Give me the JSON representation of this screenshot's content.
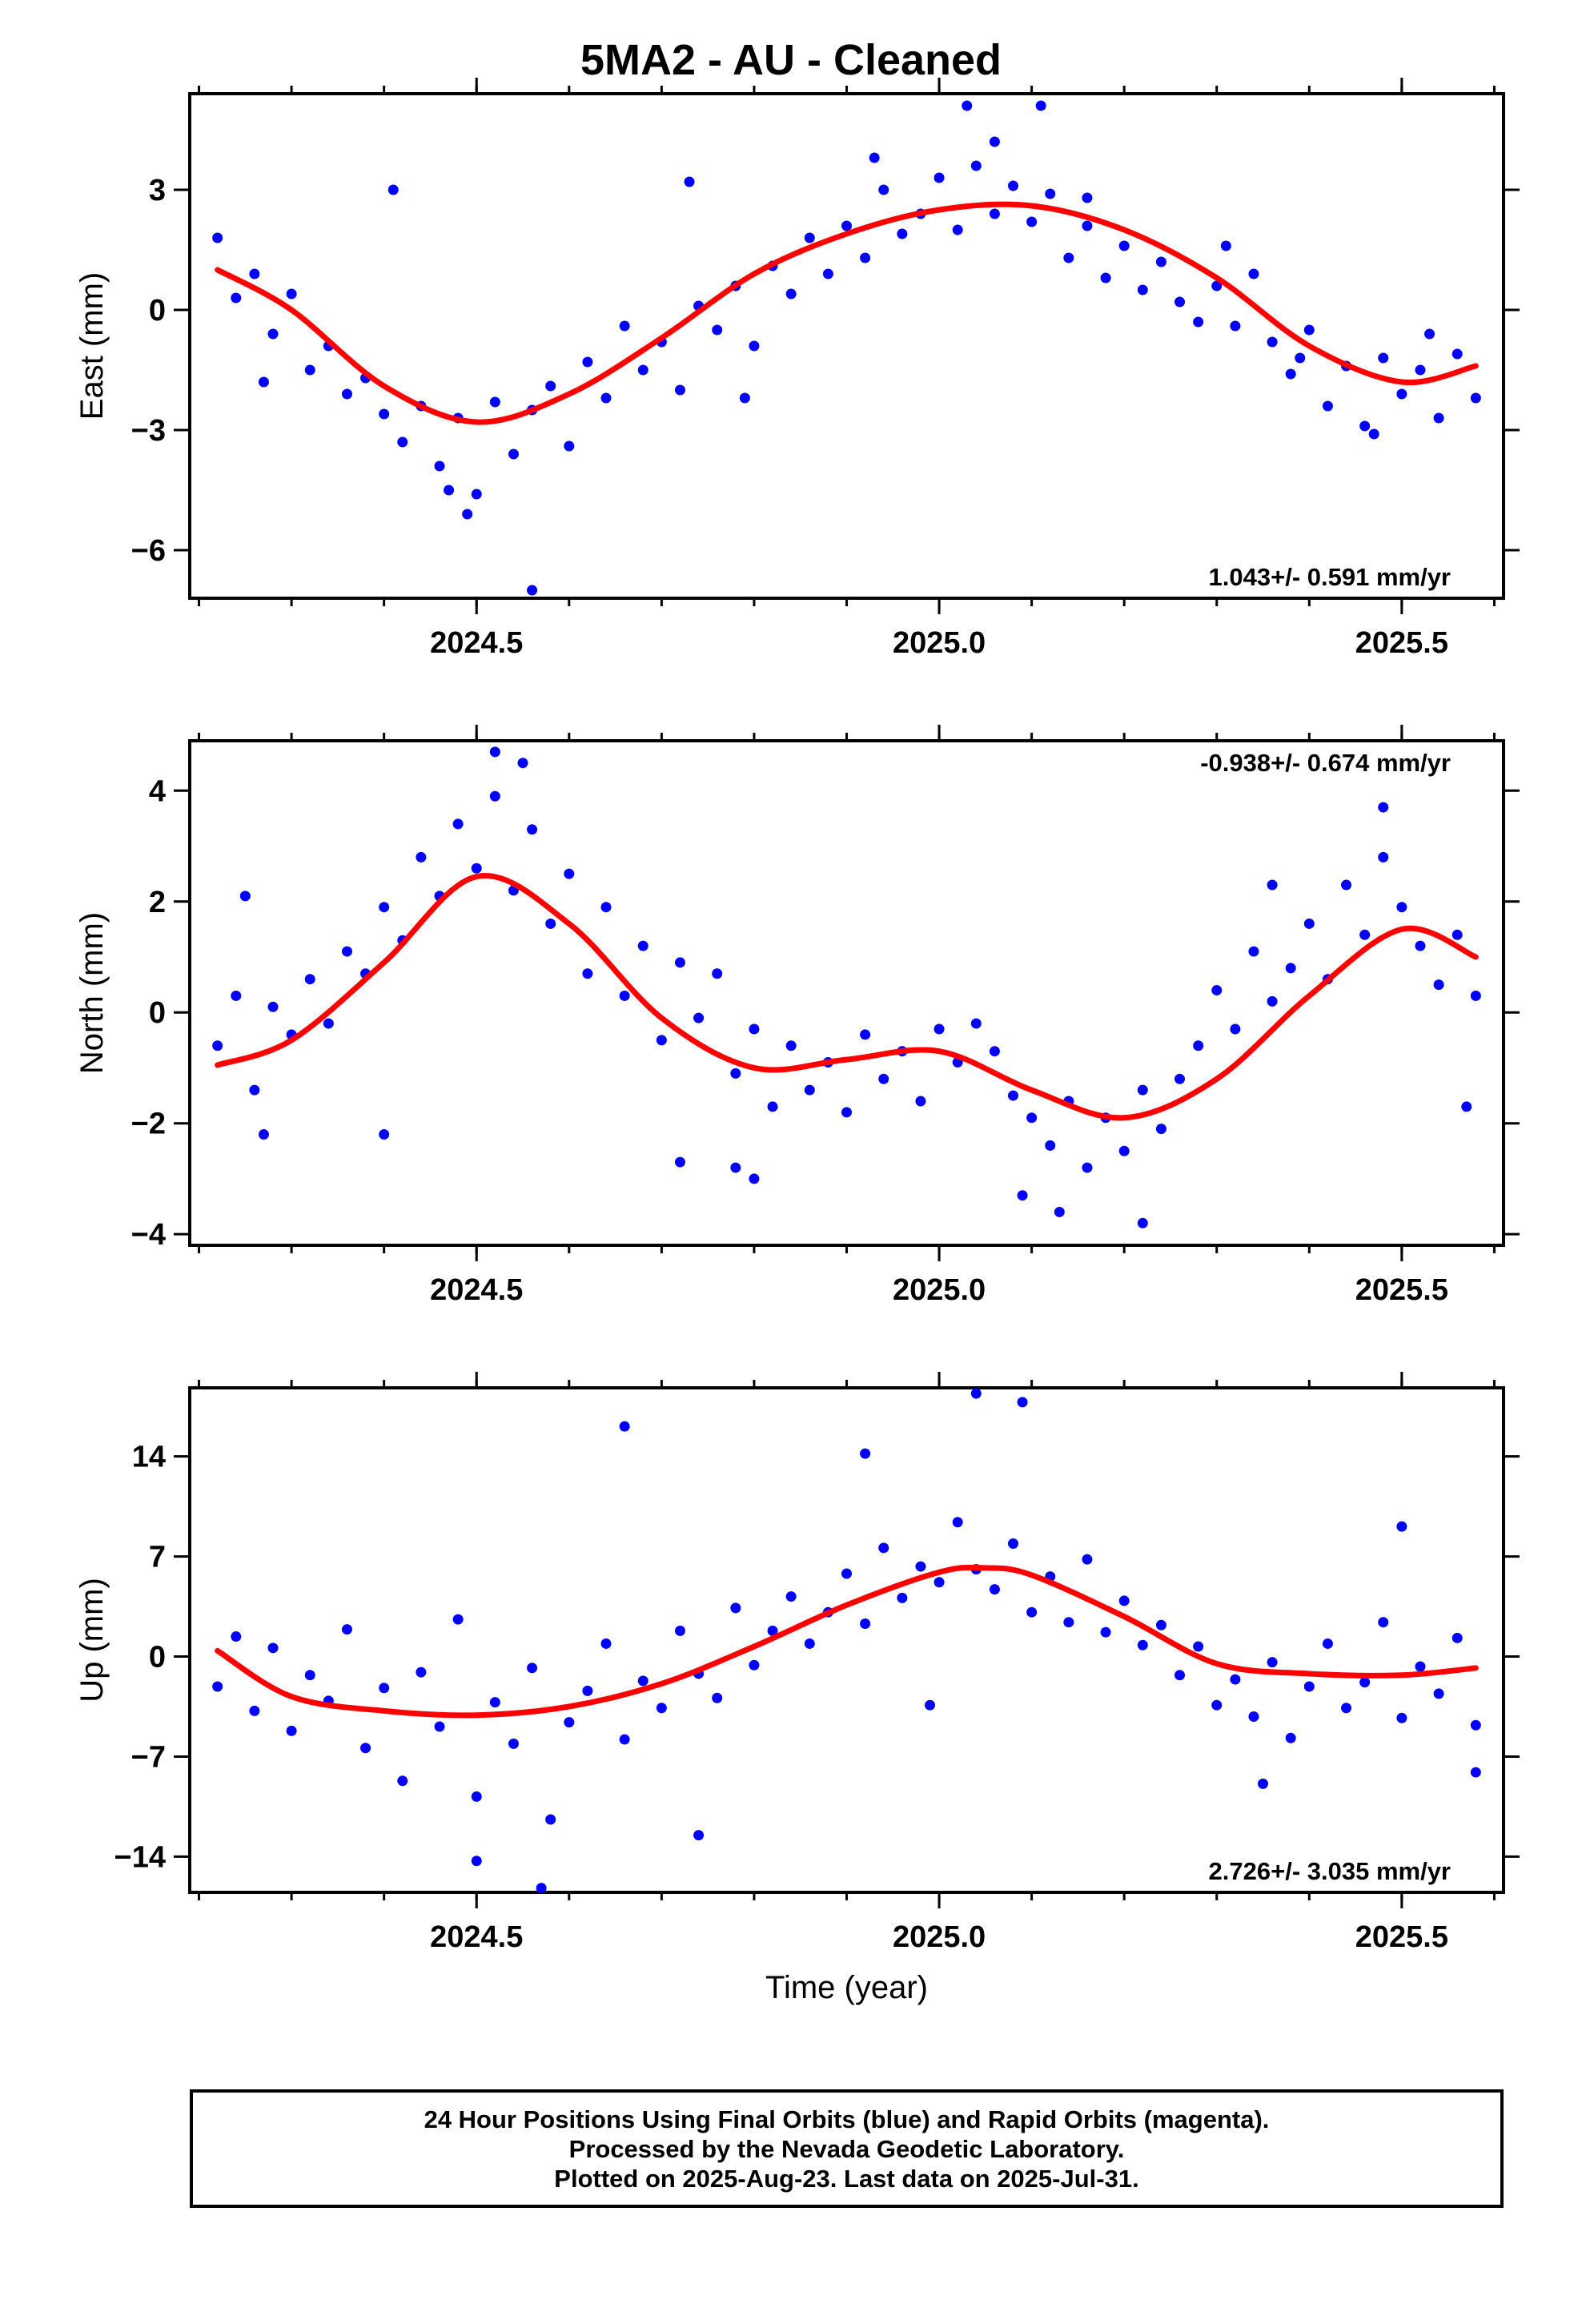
{
  "title": "5MA2  - AU - Cleaned",
  "colors": {
    "points": "#0000ff",
    "fit": "#ff0000",
    "frame": "#000000"
  },
  "footer": {
    "line1": "24 Hour Positions Using Final Orbits (blue) and Rapid Orbits (magenta).",
    "line2": "Processed by the Nevada Geodetic Laboratory.",
    "line3": "Plotted on 2025-Aug-23. Last data on 2025-Jul-31."
  },
  "chart_data": [
    {
      "type": "scatter",
      "ylabel": "East (mm)",
      "xlabel": "",
      "rate_label": "1.043+/- 0.591 mm/yr",
      "rate_position": "bottom-right",
      "xlim": [
        2024.19,
        2025.61
      ],
      "ylim": [
        -7.2,
        5.4
      ],
      "xticks": [
        2024.5,
        2025.0,
        2025.5
      ],
      "xtick_labels": [
        "2024.5",
        "2025.0",
        "2025.5"
      ],
      "yticks": [
        -6,
        -3,
        0,
        3
      ],
      "ytick_labels": [
        "−6",
        "−3",
        "0",
        "3"
      ],
      "series": [
        {
          "role": "points",
          "color": "#0000ff",
          "x": [
            2024.22,
            2024.24,
            2024.26,
            2024.28,
            2024.3,
            2024.32,
            2024.34,
            2024.36,
            2024.38,
            2024.4,
            2024.42,
            2024.44,
            2024.46,
            2024.48,
            2024.5,
            2024.52,
            2024.54,
            2024.56,
            2024.58,
            2024.6,
            2024.62,
            2024.64,
            2024.66,
            2024.68,
            2024.7,
            2024.72,
            2024.74,
            2024.76,
            2024.78,
            2024.8,
            2024.82,
            2024.84,
            2024.86,
            2024.88,
            2024.9,
            2024.92,
            2024.94,
            2024.96,
            2024.98,
            2025.0,
            2025.02,
            2025.04,
            2025.06,
            2025.08,
            2025.1,
            2025.12,
            2025.14,
            2025.16,
            2025.18,
            2025.2,
            2025.22,
            2025.24,
            2025.26,
            2025.28,
            2025.3,
            2025.32,
            2025.34,
            2025.36,
            2025.38,
            2025.4,
            2025.42,
            2025.44,
            2025.46,
            2025.48,
            2025.5,
            2025.52,
            2025.54,
            2025.56,
            2025.58,
            2024.27,
            2024.41,
            2024.47,
            2024.49,
            2024.56,
            2024.73,
            2024.79,
            2024.93,
            2025.03,
            2025.06,
            2025.11,
            2025.16,
            2025.31,
            2025.39,
            2025.47,
            2025.53
          ],
          "y": [
            1.8,
            0.3,
            0.9,
            -0.6,
            0.4,
            -1.5,
            -0.9,
            -2.1,
            -1.7,
            -2.6,
            -3.3,
            -2.4,
            -3.9,
            -2.7,
            -4.6,
            -2.3,
            -3.6,
            -2.5,
            -1.9,
            -3.4,
            -1.3,
            -2.2,
            -0.4,
            -1.5,
            -0.8,
            -2.0,
            0.1,
            -0.5,
            0.6,
            -0.9,
            1.1,
            0.4,
            1.8,
            0.9,
            2.1,
            1.3,
            3.0,
            1.9,
            2.4,
            3.3,
            2.0,
            3.6,
            2.4,
            3.1,
            2.2,
            2.9,
            1.3,
            2.1,
            0.8,
            1.6,
            0.5,
            1.2,
            0.2,
            -0.3,
            0.6,
            -0.4,
            0.9,
            -0.8,
            -1.6,
            -0.5,
            -2.4,
            -1.4,
            -2.9,
            -1.2,
            -2.1,
            -1.5,
            -2.7,
            -1.1,
            -2.2,
            -1.8,
            3.0,
            -4.5,
            -5.1,
            -7.0,
            3.2,
            -2.2,
            3.8,
            5.1,
            4.2,
            5.1,
            2.8,
            1.6,
            -1.2,
            -3.1,
            -0.6
          ]
        },
        {
          "role": "fit",
          "color": "#ff0000",
          "x": [
            2024.22,
            2024.3,
            2024.4,
            2024.5,
            2024.6,
            2024.7,
            2024.8,
            2024.9,
            2025.0,
            2025.1,
            2025.2,
            2025.3,
            2025.4,
            2025.5,
            2025.58
          ],
          "y": [
            1.0,
            0.0,
            -1.9,
            -2.8,
            -2.1,
            -0.7,
            0.9,
            1.9,
            2.5,
            2.6,
            2.0,
            0.8,
            -0.9,
            -1.8,
            -1.4
          ]
        }
      ]
    },
    {
      "type": "scatter",
      "ylabel": "North (mm)",
      "xlabel": "",
      "rate_label": "-0.938+/- 0.674 mm/yr",
      "rate_position": "top-right",
      "xlim": [
        2024.19,
        2025.61
      ],
      "ylim": [
        -4.2,
        4.9
      ],
      "xticks": [
        2024.5,
        2025.0,
        2025.5
      ],
      "xtick_labels": [
        "2024.5",
        "2025.0",
        "2025.5"
      ],
      "yticks": [
        -4,
        -2,
        0,
        2,
        4
      ],
      "ytick_labels": [
        "−4",
        "−2",
        "0",
        "2",
        "4"
      ],
      "series": [
        {
          "role": "points",
          "color": "#0000ff",
          "x": [
            2024.22,
            2024.24,
            2024.26,
            2024.28,
            2024.3,
            2024.32,
            2024.34,
            2024.36,
            2024.38,
            2024.4,
            2024.42,
            2024.44,
            2024.46,
            2024.48,
            2024.5,
            2024.52,
            2024.54,
            2024.56,
            2024.58,
            2024.6,
            2024.62,
            2024.64,
            2024.66,
            2024.68,
            2024.7,
            2024.72,
            2024.74,
            2024.76,
            2024.78,
            2024.8,
            2024.82,
            2024.84,
            2024.86,
            2024.88,
            2024.9,
            2024.92,
            2024.94,
            2024.96,
            2024.98,
            2025.0,
            2025.02,
            2025.04,
            2025.06,
            2025.08,
            2025.1,
            2025.12,
            2025.14,
            2025.16,
            2025.18,
            2025.2,
            2025.22,
            2025.24,
            2025.26,
            2025.28,
            2025.3,
            2025.32,
            2025.34,
            2025.36,
            2025.38,
            2025.4,
            2025.42,
            2025.44,
            2025.46,
            2025.48,
            2025.5,
            2025.52,
            2025.54,
            2025.56,
            2025.58,
            2024.25,
            2024.27,
            2024.4,
            2024.52,
            2024.55,
            2024.72,
            2024.78,
            2024.8,
            2025.09,
            2025.13,
            2025.22,
            2025.36,
            2025.48,
            2025.57
          ],
          "y": [
            -0.6,
            0.3,
            -1.4,
            0.1,
            -0.4,
            0.6,
            -0.2,
            1.1,
            0.7,
            1.9,
            1.3,
            2.8,
            2.1,
            3.4,
            2.6,
            3.9,
            2.2,
            3.3,
            1.6,
            2.5,
            0.7,
            1.9,
            0.3,
            1.2,
            -0.5,
            0.9,
            -0.1,
            0.7,
            -1.1,
            -0.3,
            -1.7,
            -0.6,
            -1.4,
            -0.9,
            -1.8,
            -0.4,
            -1.2,
            -0.7,
            -1.6,
            -0.3,
            -0.9,
            -0.2,
            -0.7,
            -1.5,
            -1.9,
            -2.4,
            -1.6,
            -2.8,
            -1.9,
            -2.5,
            -1.4,
            -2.1,
            -1.2,
            -0.6,
            0.4,
            -0.3,
            1.1,
            0.2,
            0.8,
            1.6,
            0.6,
            2.3,
            1.4,
            2.8,
            1.9,
            1.2,
            0.5,
            1.4,
            0.3,
            2.1,
            -2.2,
            -2.2,
            4.7,
            4.5,
            -2.7,
            -2.8,
            -3.0,
            -3.3,
            -3.6,
            -3.8,
            2.3,
            3.7,
            -1.7
          ]
        },
        {
          "role": "fit",
          "color": "#ff0000",
          "x": [
            2024.22,
            2024.3,
            2024.4,
            2024.5,
            2024.6,
            2024.7,
            2024.8,
            2024.9,
            2025.0,
            2025.1,
            2025.2,
            2025.3,
            2025.4,
            2025.5,
            2025.58
          ],
          "y": [
            -0.95,
            -0.5,
            0.9,
            2.45,
            1.6,
            -0.1,
            -1.0,
            -0.85,
            -0.7,
            -1.4,
            -1.9,
            -1.2,
            0.3,
            1.5,
            1.0
          ]
        }
      ]
    },
    {
      "type": "scatter",
      "ylabel": "Up (mm)",
      "xlabel": "Time (year)",
      "rate_label": "2.726+/- 3.035 mm/yr",
      "rate_position": "bottom-right",
      "xlim": [
        2024.19,
        2025.61
      ],
      "ylim": [
        -16.5,
        18.8
      ],
      "xticks": [
        2024.5,
        2025.0,
        2025.5
      ],
      "xtick_labels": [
        "2024.5",
        "2025.0",
        "2025.5"
      ],
      "yticks": [
        -14,
        -7,
        0,
        7,
        14
      ],
      "ytick_labels": [
        "−14",
        "−7",
        "0",
        "7",
        "14"
      ],
      "series": [
        {
          "role": "points",
          "color": "#0000ff",
          "x": [
            2024.22,
            2024.24,
            2024.26,
            2024.28,
            2024.3,
            2024.32,
            2024.34,
            2024.36,
            2024.38,
            2024.4,
            2024.42,
            2024.44,
            2024.46,
            2024.48,
            2024.5,
            2024.52,
            2024.54,
            2024.56,
            2024.58,
            2024.6,
            2024.62,
            2024.64,
            2024.66,
            2024.68,
            2024.7,
            2024.72,
            2024.74,
            2024.76,
            2024.78,
            2024.8,
            2024.82,
            2024.84,
            2024.86,
            2024.88,
            2024.9,
            2024.92,
            2024.94,
            2024.96,
            2024.98,
            2025.0,
            2025.02,
            2025.04,
            2025.06,
            2025.08,
            2025.1,
            2025.12,
            2025.14,
            2025.16,
            2025.18,
            2025.2,
            2025.22,
            2025.24,
            2025.26,
            2025.28,
            2025.3,
            2025.32,
            2025.34,
            2025.36,
            2025.38,
            2025.4,
            2025.42,
            2025.44,
            2025.46,
            2025.48,
            2025.5,
            2025.52,
            2025.54,
            2025.56,
            2025.58,
            2024.5,
            2024.57,
            2024.66,
            2024.74,
            2024.92,
            2024.99,
            2025.04,
            2025.09,
            2025.35,
            2025.5,
            2025.58
          ],
          "y": [
            -2.1,
            1.4,
            -3.8,
            0.6,
            -5.2,
            -1.3,
            -3.1,
            1.9,
            -6.4,
            -2.2,
            -8.7,
            -1.1,
            -4.9,
            2.6,
            -9.8,
            -3.2,
            -6.1,
            -0.8,
            -11.4,
            -4.6,
            -2.4,
            0.9,
            -5.8,
            -1.7,
            -3.6,
            1.8,
            -1.2,
            -2.9,
            3.4,
            -0.6,
            1.8,
            4.2,
            0.9,
            3.1,
            5.8,
            2.3,
            7.6,
            4.1,
            6.3,
            5.2,
            9.4,
            6.1,
            4.7,
            7.9,
            3.1,
            5.6,
            2.4,
            6.8,
            1.7,
            3.9,
            0.8,
            2.2,
            -1.3,
            0.7,
            -3.4,
            -1.6,
            -4.2,
            -0.4,
            -5.7,
            -2.1,
            0.9,
            -3.6,
            -1.8,
            2.4,
            -4.3,
            -0.7,
            -2.6,
            1.3,
            -4.8,
            -14.3,
            -16.2,
            16.1,
            -12.5,
            14.2,
            -3.4,
            18.4,
            17.8,
            -8.9,
            9.1,
            -8.1
          ]
        },
        {
          "role": "fit",
          "color": "#ff0000",
          "x": [
            2024.22,
            2024.3,
            2024.4,
            2024.5,
            2024.6,
            2024.7,
            2024.8,
            2024.9,
            2025.0,
            2025.05,
            2025.1,
            2025.2,
            2025.3,
            2025.4,
            2025.5,
            2025.58
          ],
          "y": [
            0.4,
            -2.8,
            -3.8,
            -4.1,
            -3.5,
            -1.9,
            0.7,
            3.6,
            5.9,
            6.2,
            5.7,
            2.8,
            -0.5,
            -1.2,
            -1.3,
            -0.8
          ]
        }
      ]
    }
  ]
}
